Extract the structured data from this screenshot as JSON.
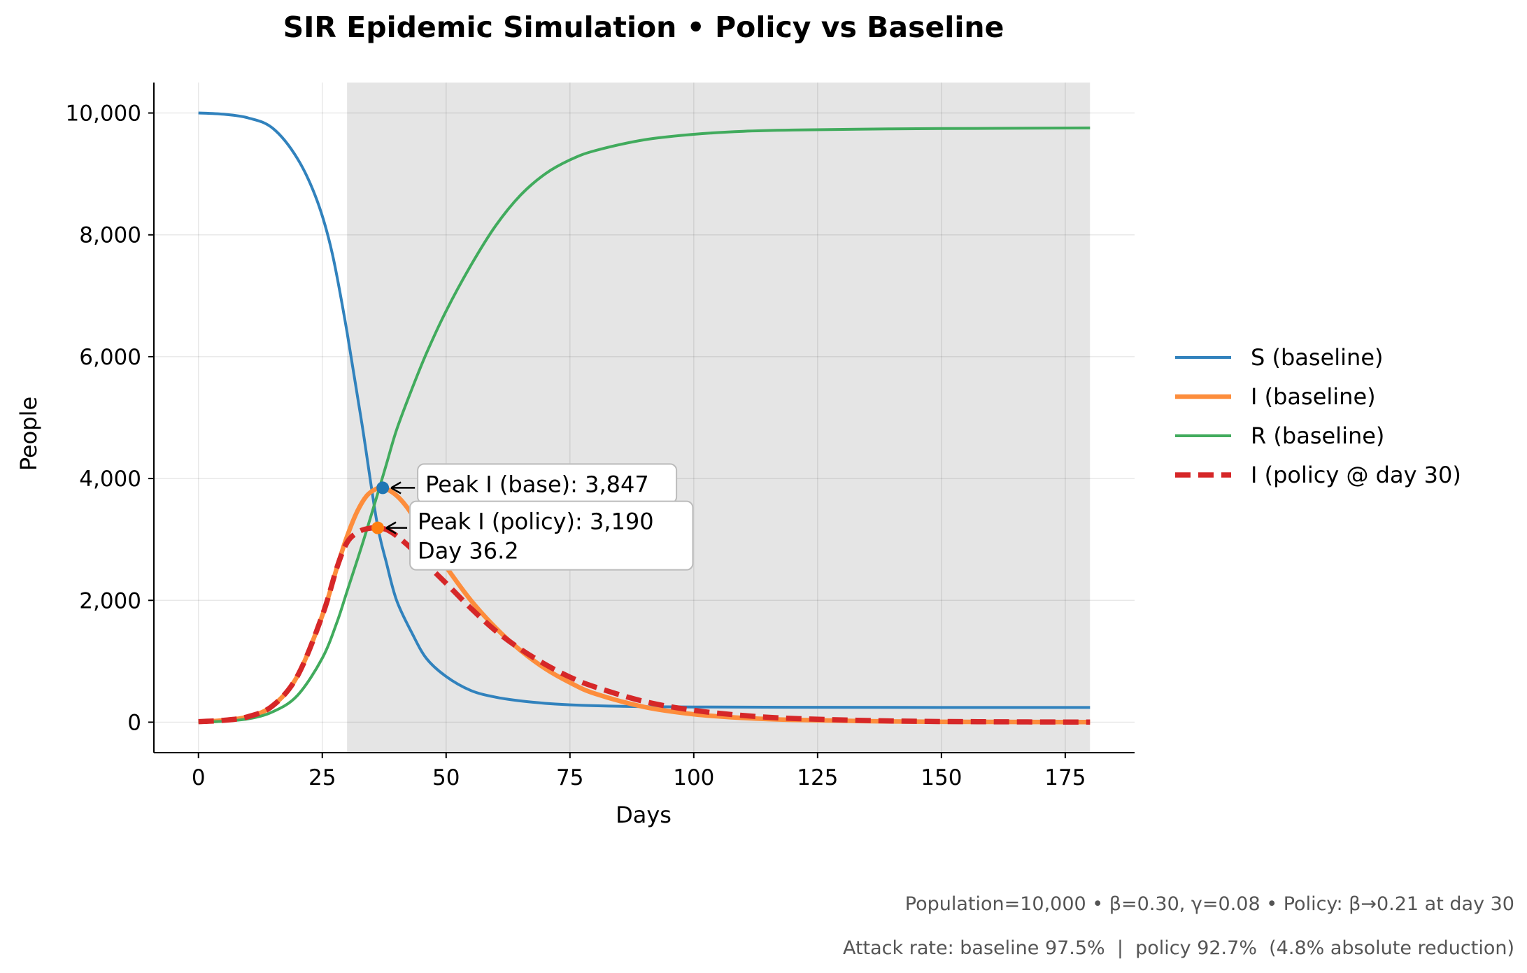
{
  "chart_data": {
    "type": "line",
    "title": "SIR Epidemic Simulation • Policy vs Baseline",
    "xlabel": "Days",
    "ylabel": "People",
    "xlim": [
      -9,
      189
    ],
    "ylim": [
      -500,
      10500
    ],
    "x_ticks": [
      0,
      25,
      50,
      75,
      100,
      125,
      150,
      175
    ],
    "x_tick_labels": [
      "0",
      "25",
      "50",
      "75",
      "100",
      "125",
      "150",
      "175"
    ],
    "y_ticks": [
      0,
      2000,
      4000,
      6000,
      8000,
      10000
    ],
    "y_tick_labels": [
      "0",
      "2,000",
      "4,000",
      "6,000",
      "8,000",
      "10,000"
    ],
    "grid": true,
    "legend_position": "right",
    "policy_shading": {
      "from_day": 30,
      "to_day": 180
    },
    "parameters": {
      "population": 10000,
      "beta": 0.3,
      "gamma": 0.08,
      "beta_policy": 0.21,
      "policy_day": 30
    },
    "series": [
      {
        "name": "S (baseline)",
        "color": "#3182bd",
        "style": "solid",
        "width": 4,
        "x": [
          0,
          5,
          10,
          15,
          20,
          24,
          27,
          30,
          33,
          36,
          38,
          40,
          43,
          46,
          50,
          55,
          60,
          65,
          70,
          75,
          80,
          90,
          100,
          120,
          150,
          180
        ],
        "y": [
          10000,
          9980,
          9920,
          9750,
          9250,
          8550,
          7700,
          6400,
          4900,
          3300,
          2600,
          2000,
          1480,
          1050,
          750,
          520,
          410,
          350,
          310,
          285,
          270,
          255,
          250,
          245,
          242,
          242
        ]
      },
      {
        "name": "I (baseline)",
        "color": "#fd8d3c",
        "style": "solid",
        "width": 6.5,
        "x": [
          0,
          5,
          10,
          15,
          20,
          25,
          28,
          30,
          32,
          34,
          36,
          37.2,
          38,
          40,
          42,
          45,
          48,
          50,
          55,
          60,
          65,
          70,
          75,
          80,
          90,
          100,
          110,
          120,
          140,
          160,
          180
        ],
        "y": [
          10,
          30,
          90,
          270,
          760,
          1750,
          2550,
          3050,
          3450,
          3720,
          3835,
          3847,
          3830,
          3720,
          3540,
          3180,
          2800,
          2550,
          2000,
          1550,
          1180,
          880,
          650,
          470,
          250,
          130,
          70,
          38,
          12,
          5,
          2
        ]
      },
      {
        "name": "R (baseline)",
        "color": "#41ab5d",
        "style": "solid",
        "width": 4,
        "x": [
          0,
          5,
          10,
          15,
          20,
          25,
          28,
          30,
          33,
          36,
          38,
          40,
          43,
          46,
          50,
          55,
          60,
          65,
          70,
          75,
          80,
          90,
          100,
          110,
          120,
          140,
          160,
          180
        ],
        "y": [
          0,
          15,
          55,
          170,
          440,
          1050,
          1650,
          2150,
          2900,
          3700,
          4250,
          4800,
          5450,
          6050,
          6750,
          7500,
          8150,
          8650,
          9000,
          9230,
          9380,
          9560,
          9650,
          9700,
          9720,
          9740,
          9748,
          9755
        ]
      },
      {
        "name": "I (policy @ day 30)",
        "color": "#d62728",
        "style": "dashed",
        "width": 7.5,
        "x": [
          0,
          5,
          10,
          15,
          20,
          25,
          28,
          30,
          32,
          34,
          36.2,
          38,
          40,
          43,
          46,
          50,
          55,
          60,
          65,
          70,
          75,
          80,
          90,
          100,
          110,
          120,
          140,
          160,
          180
        ],
        "y": [
          10,
          30,
          90,
          270,
          760,
          1750,
          2550,
          2950,
          3110,
          3175,
          3190,
          3160,
          3060,
          2850,
          2600,
          2280,
          1870,
          1500,
          1200,
          950,
          740,
          580,
          340,
          195,
          110,
          62,
          20,
          7,
          2
        ]
      }
    ],
    "annotations": [
      {
        "label": "Peak I (base): 3,847",
        "x": 37.2,
        "y": 3847,
        "marker_color": "#1f77b4"
      },
      {
        "label": "Peak I (policy): 3,190\nDay 36.2",
        "x": 36.2,
        "y": 3190,
        "marker_color": "#ff7f0e"
      }
    ],
    "footnotes": [
      "Population=10,000 • β=0.30, γ=0.08 • Policy: β→0.21 at day 30",
      "Attack rate: baseline 97.5%  |  policy 92.7%  (4.8% absolute reduction)"
    ]
  }
}
